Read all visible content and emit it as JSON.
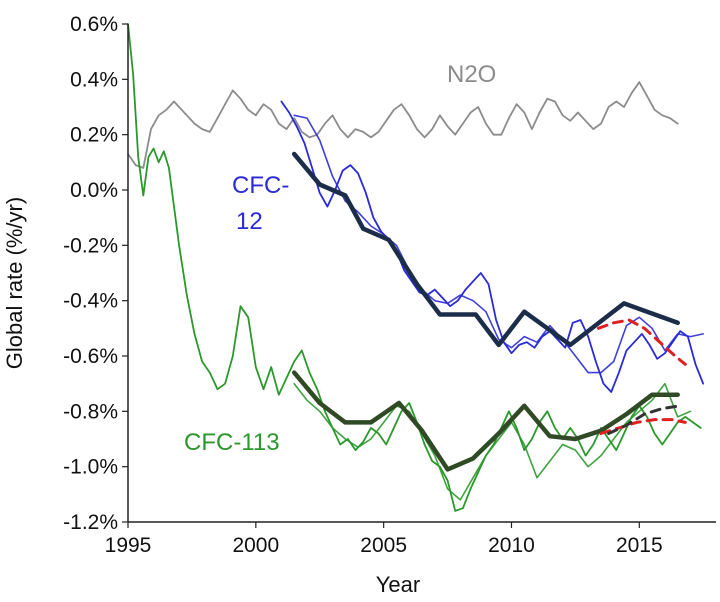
{
  "chart_data": {
    "type": "line",
    "title": "",
    "xlabel": "Year",
    "ylabel": "Global rate (%/yr)",
    "xlim": [
      1995,
      2018
    ],
    "ylim": [
      -1.2,
      0.6
    ],
    "x_ticks": [
      1995,
      2000,
      2005,
      2010,
      2015
    ],
    "y_ticks": [
      {
        "v": 0.6,
        "label": "0.6%"
      },
      {
        "v": 0.4,
        "label": "0.4%"
      },
      {
        "v": 0.2,
        "label": "0.2%"
      },
      {
        "v": 0.0,
        "label": "0.0%"
      },
      {
        "v": -0.2,
        "label": "-0.2%"
      },
      {
        "v": -0.4,
        "label": "-0.4%"
      },
      {
        "v": -0.6,
        "label": "-0.6%"
      },
      {
        "v": -0.8,
        "label": "-0.8%"
      },
      {
        "v": -1.0,
        "label": "-1.0%"
      },
      {
        "v": -1.2,
        "label": "-1.2%"
      }
    ],
    "grid": false,
    "labels": {
      "n2o": "N2O",
      "cfc12_line1": "CFC-",
      "cfc12_line2": "12",
      "cfc113": "CFC-113"
    },
    "colors": {
      "n2o": "#8c8c8c",
      "cfc12": "#2a2ad8",
      "cfc12_model": "#1c2d4a",
      "cfc113": "#2b982b",
      "cfc113_model": "#2f4a25",
      "projection_red": "#e02020",
      "projection_dark": "#333333"
    },
    "series": [
      {
        "key": "n2o",
        "role": "observed",
        "x": [
          1995.0,
          1995.3,
          1995.6,
          1995.9,
          1996.2,
          1996.5,
          1996.8,
          1997.0,
          1997.3,
          1997.6,
          1997.9,
          1998.2,
          1998.5,
          1998.8,
          1999.1,
          1999.4,
          1999.7,
          2000.0,
          2000.3,
          2000.6,
          2000.9,
          2001.2,
          2001.5,
          2001.8,
          2002.1,
          2002.4,
          2002.7,
          2003.0,
          2003.3,
          2003.6,
          2003.9,
          2004.2,
          2004.5,
          2004.8,
          2005.1,
          2005.4,
          2005.7,
          2006.0,
          2006.3,
          2006.6,
          2006.9,
          2007.2,
          2007.5,
          2007.8,
          2008.1,
          2008.4,
          2008.7,
          2009.0,
          2009.3,
          2009.6,
          2009.9,
          2010.2,
          2010.5,
          2010.8,
          2011.1,
          2011.4,
          2011.7,
          2012.0,
          2012.3,
          2012.6,
          2012.9,
          2013.2,
          2013.5,
          2013.8,
          2014.1,
          2014.4,
          2014.7,
          2015.0,
          2015.3,
          2015.6,
          2015.9,
          2016.2,
          2016.5
        ],
        "y": [
          0.13,
          0.09,
          0.08,
          0.22,
          0.27,
          0.29,
          0.32,
          0.3,
          0.27,
          0.24,
          0.22,
          0.21,
          0.26,
          0.31,
          0.36,
          0.33,
          0.29,
          0.27,
          0.31,
          0.29,
          0.24,
          0.22,
          0.26,
          0.21,
          0.19,
          0.2,
          0.24,
          0.27,
          0.22,
          0.19,
          0.22,
          0.21,
          0.19,
          0.21,
          0.25,
          0.29,
          0.31,
          0.27,
          0.22,
          0.19,
          0.22,
          0.27,
          0.23,
          0.2,
          0.24,
          0.28,
          0.3,
          0.24,
          0.2,
          0.2,
          0.26,
          0.31,
          0.28,
          0.22,
          0.28,
          0.33,
          0.32,
          0.27,
          0.25,
          0.28,
          0.25,
          0.22,
          0.24,
          0.3,
          0.32,
          0.3,
          0.35,
          0.39,
          0.34,
          0.29,
          0.27,
          0.26,
          0.24
        ]
      },
      {
        "key": "cfc12",
        "role": "observed",
        "x": [
          2001.0,
          2001.3,
          2001.6,
          2001.9,
          2002.2,
          2002.5,
          2002.8,
          2003.1,
          2003.4,
          2003.7,
          2004.0,
          2004.3,
          2004.6,
          2004.9,
          2005.2,
          2005.5,
          2005.8,
          2006.1,
          2006.4,
          2006.7,
          2007.0,
          2007.3,
          2007.6,
          2007.9,
          2008.2,
          2008.5,
          2008.8,
          2009.1,
          2009.4,
          2009.7,
          2010.0,
          2010.3,
          2010.6,
          2010.9,
          2011.2,
          2011.5,
          2011.8,
          2012.1,
          2012.4,
          2012.7,
          2013.0,
          2013.3,
          2013.6,
          2013.9,
          2014.2,
          2014.5,
          2014.8,
          2015.1,
          2015.4,
          2015.7,
          2016.0,
          2016.3,
          2016.6,
          2016.9,
          2017.2,
          2017.5
        ],
        "y": [
          0.32,
          0.28,
          0.23,
          0.17,
          0.08,
          -0.01,
          -0.06,
          0.0,
          0.07,
          0.09,
          0.06,
          -0.01,
          -0.1,
          -0.15,
          -0.18,
          -0.22,
          -0.29,
          -0.33,
          -0.37,
          -0.38,
          -0.36,
          -0.39,
          -0.42,
          -0.4,
          -0.36,
          -0.33,
          -0.3,
          -0.34,
          -0.47,
          -0.55,
          -0.59,
          -0.56,
          -0.55,
          -0.57,
          -0.53,
          -0.51,
          -0.54,
          -0.57,
          -0.48,
          -0.47,
          -0.53,
          -0.62,
          -0.7,
          -0.73,
          -0.66,
          -0.58,
          -0.55,
          -0.52,
          -0.56,
          -0.61,
          -0.59,
          -0.55,
          -0.51,
          -0.53,
          -0.63,
          -0.7
        ]
      },
      {
        "key": "cfc12",
        "role": "observed-secondary",
        "x": [
          2001.5,
          2002.0,
          2002.5,
          2003.0,
          2003.5,
          2004.0,
          2004.5,
          2005.0,
          2005.5,
          2006.0,
          2006.5,
          2007.0,
          2007.5,
          2008.0,
          2008.5,
          2009.0,
          2009.5,
          2010.0,
          2010.5,
          2011.0,
          2011.5,
          2012.0,
          2012.5,
          2013.0,
          2013.5,
          2014.0,
          2014.5,
          2015.0,
          2015.5,
          2016.0,
          2016.5,
          2017.0,
          2017.5
        ],
        "y": [
          0.27,
          0.26,
          0.18,
          0.05,
          -0.04,
          -0.08,
          -0.13,
          -0.16,
          -0.2,
          -0.29,
          -0.36,
          -0.4,
          -0.41,
          -0.38,
          -0.4,
          -0.44,
          -0.54,
          -0.57,
          -0.53,
          -0.55,
          -0.49,
          -0.54,
          -0.6,
          -0.66,
          -0.66,
          -0.62,
          -0.49,
          -0.46,
          -0.5,
          -0.58,
          -0.52,
          -0.53,
          -0.52
        ]
      },
      {
        "key": "cfc12_model",
        "role": "model",
        "x": [
          2001.5,
          2002.5,
          2003.5,
          2004.2,
          2005.2,
          2006.3,
          2007.2,
          2008.6,
          2009.5,
          2010.5,
          2012.3,
          2014.4,
          2016.5
        ],
        "y": [
          0.13,
          0.02,
          -0.02,
          -0.14,
          -0.18,
          -0.34,
          -0.45,
          -0.45,
          -0.56,
          -0.44,
          -0.56,
          -0.41,
          -0.48
        ]
      },
      {
        "key": "projection_red",
        "role": "projection",
        "x": [
          2013.4,
          2014.0,
          2014.6,
          2015.2,
          2015.8,
          2016.4,
          2016.8
        ],
        "y": [
          -0.5,
          -0.48,
          -0.47,
          -0.5,
          -0.55,
          -0.6,
          -0.63
        ]
      },
      {
        "key": "cfc113",
        "role": "observed",
        "x": [
          1995.0,
          1995.2,
          1995.4,
          1995.6,
          1995.8,
          1996.0,
          1996.2,
          1996.4,
          1996.6,
          1996.8,
          1997.0,
          1997.3,
          1997.6,
          1997.9,
          1998.2,
          1998.5,
          1998.8,
          1999.1,
          1999.4,
          1999.7,
          2000.0,
          2000.3,
          2000.6,
          2000.9,
          2001.2,
          2001.5,
          2001.8,
          2002.1,
          2002.4,
          2002.7,
          2003.0,
          2003.3,
          2003.6,
          2003.9,
          2004.2,
          2004.5,
          2004.8,
          2005.1,
          2005.4,
          2005.7,
          2006.0,
          2006.3,
          2006.6,
          2006.9,
          2007.2,
          2007.5,
          2007.8,
          2008.1,
          2008.4,
          2008.7,
          2009.0,
          2009.3,
          2009.6,
          2009.9,
          2010.2,
          2010.5,
          2010.8,
          2011.1,
          2011.4,
          2011.7,
          2012.0,
          2012.3,
          2012.6,
          2012.9,
          2013.2,
          2013.5,
          2013.8,
          2014.1,
          2014.4,
          2014.7,
          2015.0,
          2015.3,
          2015.6,
          2015.9,
          2016.2,
          2016.5,
          2016.8,
          2017.1,
          2017.4
        ],
        "y": [
          0.6,
          0.42,
          0.12,
          -0.02,
          0.12,
          0.15,
          0.1,
          0.14,
          0.08,
          -0.06,
          -0.2,
          -0.38,
          -0.52,
          -0.62,
          -0.66,
          -0.72,
          -0.7,
          -0.6,
          -0.42,
          -0.46,
          -0.64,
          -0.72,
          -0.64,
          -0.74,
          -0.68,
          -0.62,
          -0.58,
          -0.66,
          -0.72,
          -0.8,
          -0.86,
          -0.92,
          -0.9,
          -0.94,
          -0.91,
          -0.86,
          -0.88,
          -0.92,
          -0.86,
          -0.8,
          -0.77,
          -0.84,
          -0.92,
          -0.98,
          -1.0,
          -1.05,
          -1.16,
          -1.15,
          -1.08,
          -1.02,
          -0.96,
          -0.92,
          -0.86,
          -0.8,
          -0.86,
          -0.94,
          -0.9,
          -0.84,
          -0.8,
          -0.86,
          -0.9,
          -0.86,
          -0.9,
          -0.96,
          -0.92,
          -0.86,
          -0.9,
          -0.94,
          -0.88,
          -0.82,
          -0.78,
          -0.82,
          -0.88,
          -0.92,
          -0.88,
          -0.84,
          -0.82,
          -0.84,
          -0.86
        ]
      },
      {
        "key": "cfc113",
        "role": "observed-secondary",
        "x": [
          2001.5,
          2002.0,
          2002.5,
          2003.0,
          2003.5,
          2004.0,
          2004.5,
          2005.0,
          2005.5,
          2006.0,
          2006.5,
          2007.0,
          2007.5,
          2008.0,
          2008.5,
          2009.0,
          2009.5,
          2010.0,
          2010.5,
          2011.0,
          2011.5,
          2012.0,
          2012.5,
          2013.0,
          2013.5,
          2014.0,
          2014.5,
          2015.0,
          2015.5,
          2016.0,
          2016.5,
          2017.0
        ],
        "y": [
          -0.7,
          -0.76,
          -0.8,
          -0.86,
          -0.9,
          -0.93,
          -0.9,
          -0.84,
          -0.78,
          -0.8,
          -0.88,
          -0.96,
          -1.08,
          -1.12,
          -1.04,
          -0.96,
          -0.9,
          -0.84,
          -0.92,
          -1.04,
          -0.98,
          -0.92,
          -0.94,
          -1.0,
          -0.96,
          -0.9,
          -0.84,
          -0.8,
          -0.76,
          -0.7,
          -0.82,
          -0.8
        ]
      },
      {
        "key": "cfc113_model",
        "role": "model",
        "x": [
          2001.5,
          2002.5,
          2003.5,
          2004.5,
          2005.6,
          2006.5,
          2007.5,
          2008.5,
          2009.5,
          2010.5,
          2011.5,
          2012.5,
          2013.5,
          2014.5,
          2015.5,
          2016.5
        ],
        "y": [
          -0.66,
          -0.77,
          -0.84,
          -0.84,
          -0.77,
          -0.87,
          -1.01,
          -0.97,
          -0.88,
          -0.78,
          -0.89,
          -0.9,
          -0.87,
          -0.81,
          -0.74,
          -0.74
        ]
      },
      {
        "key": "projection_red",
        "role": "projection",
        "x": [
          2013.5,
          2014.2,
          2014.9,
          2015.6,
          2016.3,
          2016.8
        ],
        "y": [
          -0.88,
          -0.86,
          -0.84,
          -0.83,
          -0.83,
          -0.84
        ]
      },
      {
        "key": "projection_dark",
        "role": "projection",
        "x": [
          2013.8,
          2014.5,
          2015.2,
          2015.9,
          2016.6
        ],
        "y": [
          -0.88,
          -0.85,
          -0.81,
          -0.79,
          -0.78
        ]
      }
    ]
  }
}
